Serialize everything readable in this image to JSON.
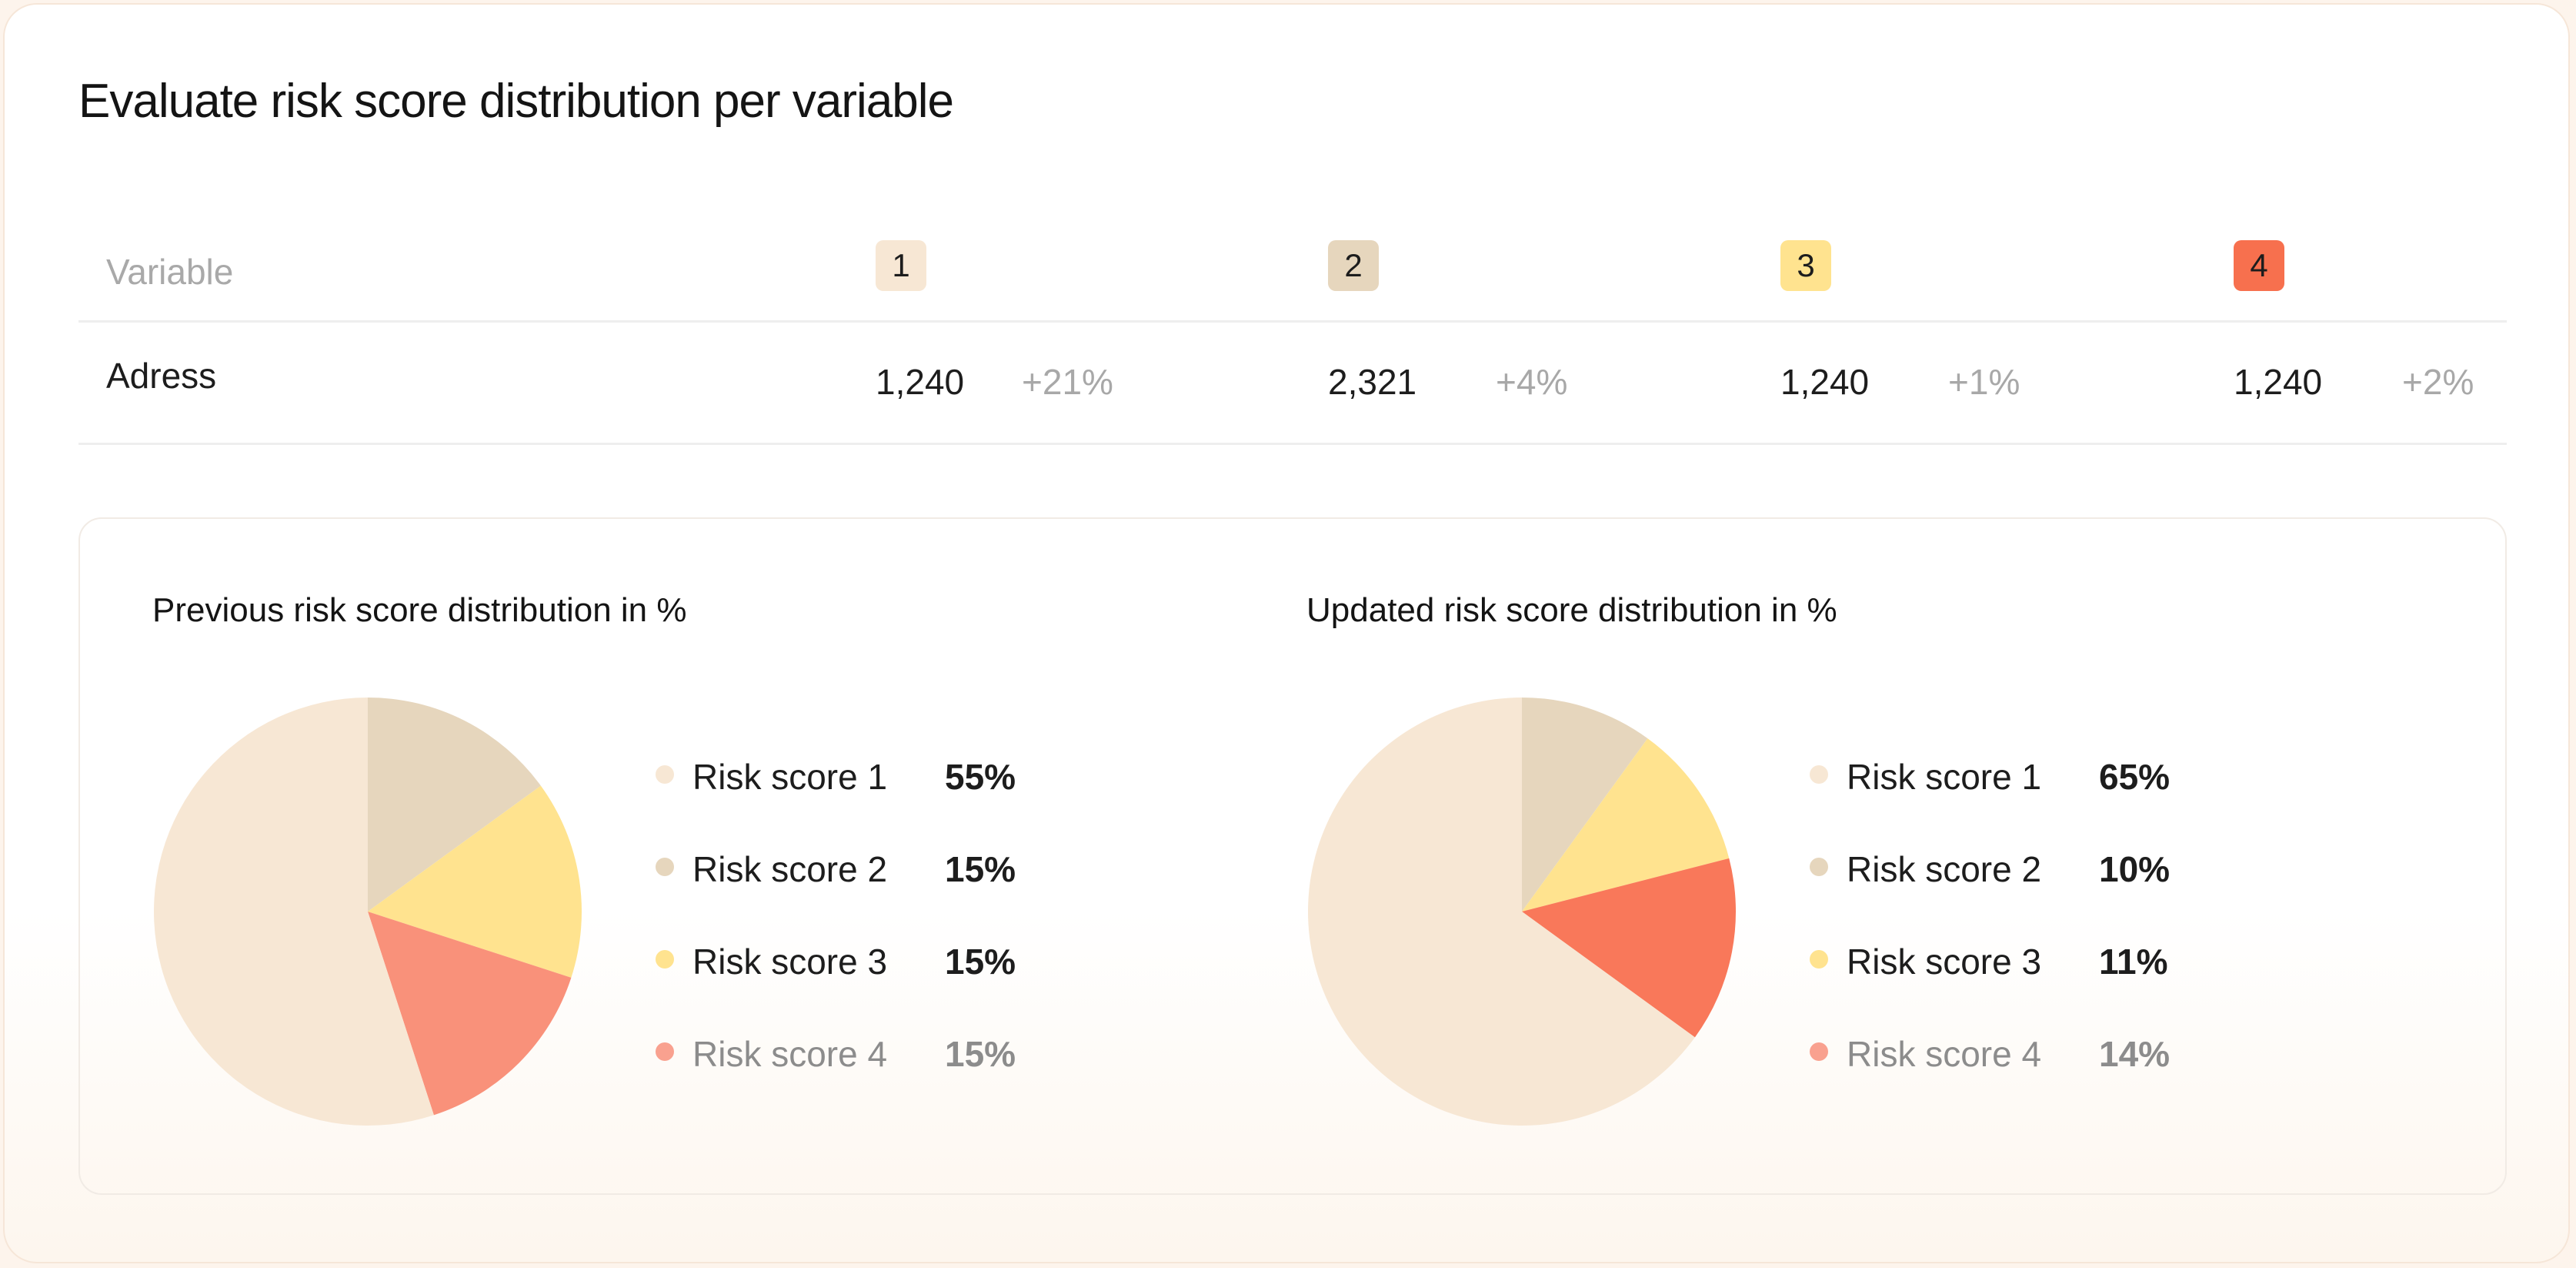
{
  "title": "Evaluate risk score distribution per variable",
  "table": {
    "header_label": "Variable",
    "scores": [
      {
        "label": "1",
        "color": "#f7e7d4"
      },
      {
        "label": "2",
        "color": "#e6d6bd"
      },
      {
        "label": "3",
        "color": "#ffe38f"
      },
      {
        "label": "4",
        "color": "#f7704e"
      }
    ],
    "rows": [
      {
        "variable": "Adress",
        "cells": [
          {
            "value": "1,240",
            "change": "+21%"
          },
          {
            "value": "2,321",
            "change": "+4%"
          },
          {
            "value": "1,240",
            "change": "+1%"
          },
          {
            "value": "1,240",
            "change": "+2%"
          }
        ]
      }
    ]
  },
  "chart_data": [
    {
      "type": "pie",
      "title": "Previous risk score distribution in %",
      "categories": [
        "Risk score 1",
        "Risk score 2",
        "Risk score 3",
        "Risk score 4"
      ],
      "values": [
        55,
        15,
        15,
        15
      ],
      "value_labels": [
        "55%",
        "15%",
        "15%",
        "15%"
      ],
      "colors": [
        "#f7e7d4",
        "#e6d6bd",
        "#ffe38f",
        "#f9917a"
      ]
    },
    {
      "type": "pie",
      "title": "Updated risk score distribution in %",
      "categories": [
        "Risk score 1",
        "Risk score 2",
        "Risk score 3",
        "Risk score 4"
      ],
      "values": [
        65,
        10,
        11,
        14
      ],
      "value_labels": [
        "65%",
        "10%",
        "11%",
        "14%"
      ],
      "colors": [
        "#f7e7d4",
        "#e6d6bd",
        "#ffe38f",
        "#f9785a"
      ]
    }
  ]
}
